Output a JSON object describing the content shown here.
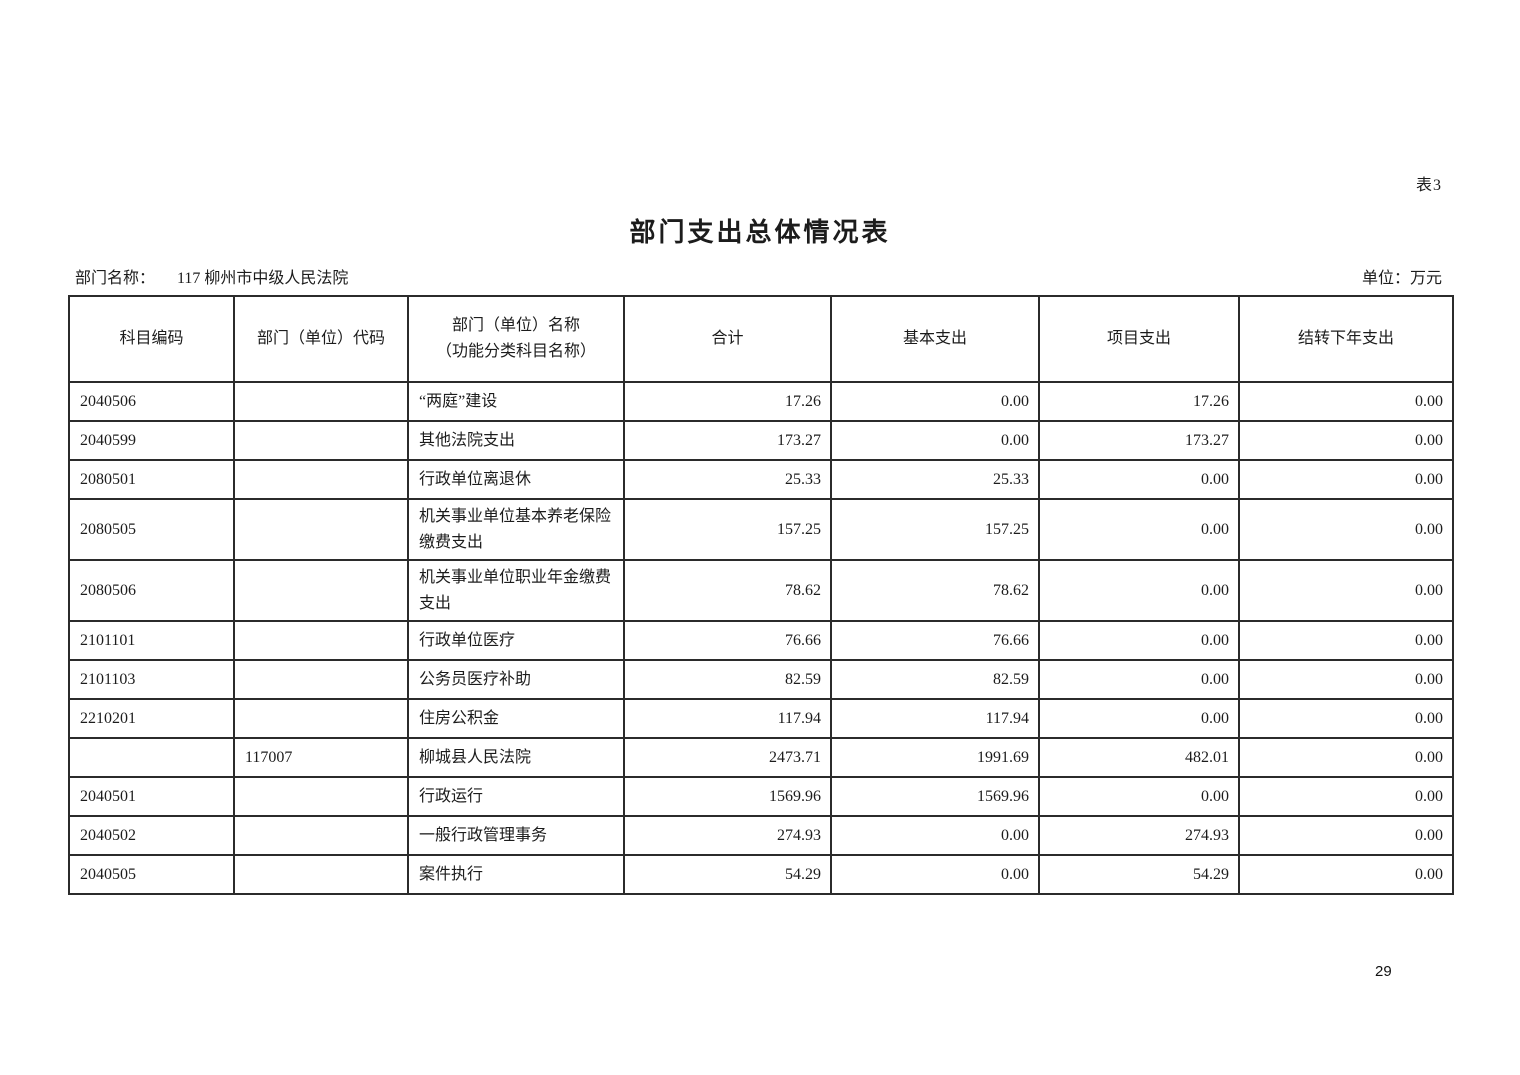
{
  "page": {
    "tag": "表3",
    "title": "部门支出总体情况表",
    "meta": {
      "dept_label": "部门名称：",
      "dept_value": "117 柳州市中级人民法院",
      "unit_note": "单位：万元"
    },
    "page_number": "29"
  },
  "table": {
    "headers": {
      "subject_code": "科目编码",
      "unit_code": "部门（单位）代码",
      "name_line1": "部门（单位）名称",
      "name_line2": "（功能分类科目名称）",
      "total": "合计",
      "basic": "基本支出",
      "project": "项目支出",
      "carryover": "结转下年支出"
    },
    "rows": [
      {
        "subject_code": "2040506",
        "unit_code": "",
        "name": "“两庭”建设",
        "total": "17.26",
        "basic": "0.00",
        "project": "17.26",
        "carryover": "0.00"
      },
      {
        "subject_code": "2040599",
        "unit_code": "",
        "name": "其他法院支出",
        "total": "173.27",
        "basic": "0.00",
        "project": "173.27",
        "carryover": "0.00"
      },
      {
        "subject_code": "2080501",
        "unit_code": "",
        "name": "行政单位离退休",
        "total": "25.33",
        "basic": "25.33",
        "project": "0.00",
        "carryover": "0.00"
      },
      {
        "subject_code": "2080505",
        "unit_code": "",
        "name": "机关事业单位基本养老保险缴费支出",
        "total": "157.25",
        "basic": "157.25",
        "project": "0.00",
        "carryover": "0.00"
      },
      {
        "subject_code": "2080506",
        "unit_code": "",
        "name": "机关事业单位职业年金缴费支出",
        "total": "78.62",
        "basic": "78.62",
        "project": "0.00",
        "carryover": "0.00"
      },
      {
        "subject_code": "2101101",
        "unit_code": "",
        "name": "行政单位医疗",
        "total": "76.66",
        "basic": "76.66",
        "project": "0.00",
        "carryover": "0.00"
      },
      {
        "subject_code": "2101103",
        "unit_code": "",
        "name": "公务员医疗补助",
        "total": "82.59",
        "basic": "82.59",
        "project": "0.00",
        "carryover": "0.00"
      },
      {
        "subject_code": "2210201",
        "unit_code": "",
        "name": "住房公积金",
        "total": "117.94",
        "basic": "117.94",
        "project": "0.00",
        "carryover": "0.00"
      },
      {
        "subject_code": "",
        "unit_code": "117007",
        "name": "柳城县人民法院",
        "total": "2473.71",
        "basic": "1991.69",
        "project": "482.01",
        "carryover": "0.00"
      },
      {
        "subject_code": "2040501",
        "unit_code": "",
        "name": "行政运行",
        "total": "1569.96",
        "basic": "1569.96",
        "project": "0.00",
        "carryover": "0.00"
      },
      {
        "subject_code": "2040502",
        "unit_code": "",
        "name": "一般行政管理事务",
        "total": "274.93",
        "basic": "0.00",
        "project": "274.93",
        "carryover": "0.00"
      },
      {
        "subject_code": "2040505",
        "unit_code": "",
        "name": "案件执行",
        "total": "54.29",
        "basic": "0.00",
        "project": "54.29",
        "carryover": "0.00"
      }
    ]
  }
}
